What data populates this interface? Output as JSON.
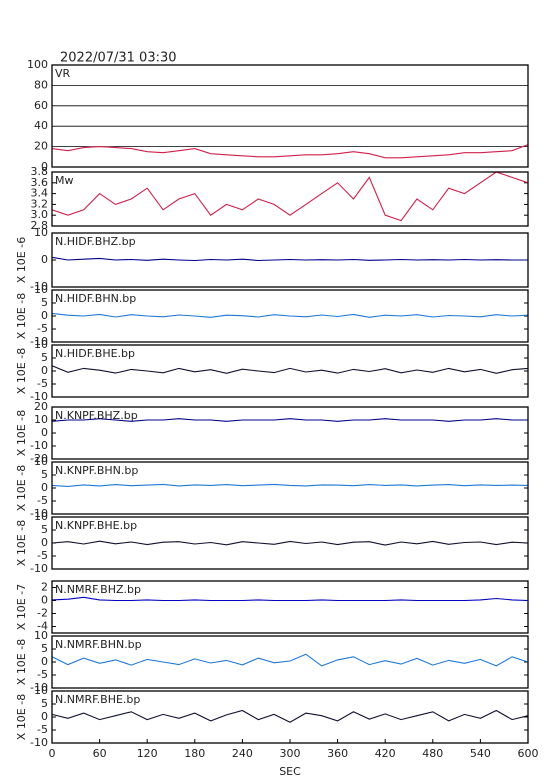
{
  "title": "2022/07/31 03:30",
  "chart_data": [
    {
      "type": "line",
      "title": "VR",
      "color": "#d0204a",
      "grid": true,
      "xlim": [
        0,
        600
      ],
      "ylim": [
        0,
        100
      ],
      "yticks": [
        0,
        20,
        40,
        60,
        80,
        100
      ],
      "x": [
        0,
        20,
        40,
        60,
        80,
        100,
        120,
        140,
        160,
        180,
        200,
        220,
        240,
        260,
        280,
        300,
        320,
        340,
        360,
        380,
        400,
        420,
        440,
        460,
        480,
        500,
        520,
        540,
        560,
        580,
        600
      ],
      "values": [
        18,
        16,
        19,
        20,
        19,
        18,
        15,
        14,
        16,
        18,
        13,
        12,
        11,
        10,
        10,
        11,
        12,
        12,
        13,
        15,
        13,
        9,
        9,
        10,
        11,
        12,
        14,
        14,
        15,
        16,
        22
      ]
    },
    {
      "type": "line",
      "title": "Mw",
      "color": "#d0204a",
      "grid": false,
      "xlim": [
        0,
        600
      ],
      "ylim": [
        2.8,
        3.8
      ],
      "yticks": [
        2.8,
        {
          "value": 3,
          "label": "3.0"
        },
        3.2,
        3.4,
        3.6,
        3.8
      ],
      "x": [
        0,
        20,
        40,
        60,
        80,
        100,
        120,
        140,
        160,
        180,
        200,
        220,
        240,
        260,
        280,
        300,
        320,
        340,
        360,
        380,
        400,
        420,
        440,
        460,
        480,
        500,
        520,
        540,
        560,
        580,
        600
      ],
      "values": [
        3.1,
        3.0,
        3.1,
        3.4,
        3.2,
        3.3,
        3.5,
        3.1,
        3.3,
        3.4,
        3.0,
        3.2,
        3.1,
        3.3,
        3.2,
        3.0,
        3.2,
        3.4,
        3.6,
        3.3,
        3.7,
        3.0,
        2.9,
        3.3,
        3.1,
        3.5,
        3.4,
        3.6,
        3.8,
        3.7,
        3.6
      ]
    },
    {
      "type": "line",
      "title": "N.HIDF.BHZ.bp",
      "ylabel": "X 10E -6",
      "color": "#00008b",
      "grid": false,
      "xlim": [
        0,
        600
      ],
      "ylim": [
        -10,
        10
      ],
      "yticks": [
        -10,
        0,
        10
      ],
      "x": [
        0,
        20,
        40,
        60,
        80,
        100,
        120,
        140,
        160,
        180,
        200,
        220,
        240,
        260,
        280,
        300,
        320,
        340,
        360,
        380,
        400,
        420,
        440,
        460,
        480,
        500,
        520,
        540,
        560,
        580,
        600
      ],
      "values": [
        1,
        0,
        0.3,
        0.6,
        0,
        0.2,
        -0.1,
        0.3,
        0,
        -0.2,
        0.2,
        0,
        0.3,
        -0.2,
        0,
        0.2,
        0,
        0.1,
        0,
        0.2,
        -0.1,
        0,
        0.2,
        0,
        0.1,
        0,
        0.2,
        0,
        0.1,
        0,
        0
      ]
    },
    {
      "type": "line",
      "title": "N.HIDF.BHN.bp",
      "ylabel": "X 10E -8",
      "color": "#1e78d8",
      "grid": false,
      "xlim": [
        0,
        600
      ],
      "ylim": [
        -10,
        10
      ],
      "yticks": [
        -10,
        -5,
        0,
        5,
        10
      ],
      "x": [
        0,
        20,
        40,
        60,
        80,
        100,
        120,
        140,
        160,
        180,
        200,
        220,
        240,
        260,
        280,
        300,
        320,
        340,
        360,
        380,
        400,
        420,
        440,
        460,
        480,
        500,
        520,
        540,
        560,
        580,
        600
      ],
      "values": [
        1,
        0.3,
        0,
        0.6,
        -0.4,
        0.5,
        0,
        -0.3,
        0.4,
        0,
        -0.5,
        0.3,
        0.1,
        -0.4,
        0.5,
        0,
        -0.3,
        0.4,
        -0.2,
        0.6,
        -0.5,
        0.3,
        0,
        0.5,
        -0.4,
        0.2,
        0,
        -0.3,
        0.5,
        0,
        0.3
      ]
    },
    {
      "type": "line",
      "title": "N.HIDF.BHE.bp",
      "ylabel": "X 10E -8",
      "color": "#101030",
      "grid": false,
      "xlim": [
        0,
        600
      ],
      "ylim": [
        -10,
        10
      ],
      "yticks": [
        -10,
        -5,
        0,
        5,
        10
      ],
      "x": [
        0,
        20,
        40,
        60,
        80,
        100,
        120,
        140,
        160,
        180,
        200,
        220,
        240,
        260,
        280,
        300,
        320,
        340,
        360,
        380,
        400,
        420,
        440,
        460,
        480,
        500,
        520,
        540,
        560,
        580,
        600
      ],
      "values": [
        2,
        -0.5,
        1,
        0.3,
        -0.8,
        0.6,
        0,
        -0.7,
        1,
        -0.3,
        0.5,
        -0.9,
        0.7,
        0,
        -0.6,
        1,
        -0.4,
        0.3,
        -0.8,
        0.6,
        -0.2,
        0.9,
        -0.7,
        0.4,
        -0.5,
        1,
        -0.3,
        0.6,
        -0.9,
        0.5,
        1
      ]
    },
    {
      "type": "line",
      "title": "N.KNPF.BHZ.bp",
      "ylabel": "X 10E -8",
      "color": "#00008b",
      "grid": false,
      "xlim": [
        0,
        600
      ],
      "ylim": [
        -20,
        20
      ],
      "yticks": [
        -20,
        -10,
        0,
        10,
        20
      ],
      "x": [
        0,
        20,
        40,
        60,
        80,
        100,
        120,
        140,
        160,
        180,
        200,
        220,
        240,
        260,
        280,
        300,
        320,
        340,
        360,
        380,
        400,
        420,
        440,
        460,
        480,
        500,
        520,
        540,
        560,
        580,
        600
      ],
      "values": [
        9,
        10,
        10,
        11,
        10,
        9,
        10,
        10,
        11,
        10,
        10,
        9,
        10,
        10,
        10,
        11,
        10,
        10,
        9,
        10,
        10,
        11,
        10,
        10,
        10,
        9,
        10,
        10,
        11,
        10,
        10
      ]
    },
    {
      "type": "line",
      "title": "N.KNPF.BHN.bp",
      "ylabel": "X 10E -8",
      "color": "#1e78d8",
      "grid": false,
      "xlim": [
        0,
        600
      ],
      "ylim": [
        -10,
        10
      ],
      "yticks": [
        -10,
        -5,
        0,
        5,
        10
      ],
      "x": [
        0,
        20,
        40,
        60,
        80,
        100,
        120,
        140,
        160,
        180,
        200,
        220,
        240,
        260,
        280,
        300,
        320,
        340,
        360,
        380,
        400,
        420,
        440,
        460,
        480,
        500,
        520,
        540,
        560,
        580,
        600
      ],
      "values": [
        1,
        0.6,
        1.2,
        0.8,
        1.3,
        0.9,
        1.1,
        1.4,
        0.8,
        1.2,
        1,
        1.3,
        0.9,
        1.1,
        1.4,
        1,
        0.8,
        1.2,
        1.1,
        0.9,
        1.3,
        1,
        1.2,
        0.8,
        1.1,
        1.3,
        0.9,
        1.2,
        1,
        1.1,
        1
      ]
    },
    {
      "type": "line",
      "title": "N.KNPF.BHE.bp",
      "ylabel": "X 10E -8",
      "color": "#101030",
      "grid": false,
      "xlim": [
        0,
        600
      ],
      "ylim": [
        -10,
        10
      ],
      "yticks": [
        -10,
        -5,
        0,
        5,
        10
      ],
      "x": [
        0,
        20,
        40,
        60,
        80,
        100,
        120,
        140,
        160,
        180,
        200,
        220,
        240,
        260,
        280,
        300,
        320,
        340,
        360,
        380,
        400,
        420,
        440,
        460,
        480,
        500,
        520,
        540,
        560,
        580,
        600
      ],
      "values": [
        0,
        0.5,
        -0.4,
        0.7,
        -0.3,
        0.4,
        -0.6,
        0.3,
        0.5,
        -0.4,
        0.2,
        -0.7,
        0.5,
        0,
        -0.5,
        0.6,
        -0.2,
        0.4,
        -0.6,
        0.3,
        0.5,
        -0.8,
        0.4,
        -0.3,
        0.6,
        -0.5,
        0.2,
        0.4,
        -0.6,
        0.3,
        0
      ]
    },
    {
      "type": "line",
      "title": "N.NMRF.BHZ.bp",
      "ylabel": "X 10E -7",
      "color": "#0000c0",
      "grid": false,
      "xlim": [
        0,
        600
      ],
      "ylim": [
        -5,
        3
      ],
      "yticks": [
        -4,
        -2,
        0,
        2
      ],
      "x": [
        0,
        20,
        40,
        60,
        80,
        100,
        120,
        140,
        160,
        180,
        200,
        220,
        240,
        260,
        280,
        300,
        320,
        340,
        360,
        380,
        400,
        420,
        440,
        460,
        480,
        500,
        520,
        540,
        560,
        580,
        600
      ],
      "values": [
        0.1,
        0.2,
        0.5,
        0.1,
        0,
        0,
        0.1,
        0,
        0,
        0.1,
        0,
        0,
        0,
        0.1,
        0,
        0,
        0,
        0.1,
        0,
        0,
        0,
        0,
        0.1,
        0,
        0,
        0,
        0,
        0.1,
        0.3,
        0.1,
        0
      ]
    },
    {
      "type": "line",
      "title": "N.NMRF.BHN.bp",
      "ylabel": "X 10E -8",
      "color": "#1e78d8",
      "grid": false,
      "xlim": [
        0,
        600
      ],
      "ylim": [
        -10,
        10
      ],
      "yticks": [
        -10,
        -5,
        0,
        5,
        10
      ],
      "x": [
        0,
        20,
        40,
        60,
        80,
        100,
        120,
        140,
        160,
        180,
        200,
        220,
        240,
        260,
        280,
        300,
        320,
        340,
        360,
        380,
        400,
        420,
        440,
        460,
        480,
        500,
        520,
        540,
        560,
        580,
        600
      ],
      "values": [
        2,
        -1,
        1.5,
        -0.5,
        0.8,
        -1.2,
        1,
        0,
        -1,
        1.2,
        -0.4,
        0.6,
        -1.1,
        1.5,
        -0.3,
        0.4,
        3,
        -1.5,
        0.8,
        2,
        -1,
        0.5,
        -0.8,
        1.4,
        -1.2,
        0.6,
        -0.5,
        1,
        -1.5,
        2,
        0
      ]
    },
    {
      "type": "line",
      "title": "N.NMRF.BHE.bp",
      "ylabel": "X 10E -8",
      "color": "#101030",
      "grid": false,
      "xlim": [
        0,
        600
      ],
      "ylim": [
        -10,
        10
      ],
      "yticks": [
        -10,
        -5,
        0,
        5,
        10
      ],
      "x": [
        0,
        20,
        40,
        60,
        80,
        100,
        120,
        140,
        160,
        180,
        200,
        220,
        240,
        260,
        280,
        300,
        320,
        340,
        360,
        380,
        400,
        420,
        440,
        460,
        480,
        500,
        520,
        540,
        560,
        580,
        600
      ],
      "values": [
        1,
        -0.5,
        1.5,
        -1,
        0.5,
        2,
        -1,
        1,
        -0.5,
        1.5,
        -1.5,
        0.8,
        2.5,
        -1,
        1,
        -2,
        1.5,
        0.5,
        -1.5,
        2,
        -0.8,
        1.2,
        -1,
        0.5,
        2,
        -1.5,
        1,
        -0.5,
        2.5,
        -1,
        0.5
      ],
      "xticks": [
        0,
        60,
        120,
        180,
        240,
        300,
        360,
        420,
        480,
        540,
        600
      ],
      "xlabel": "SEC"
    }
  ]
}
